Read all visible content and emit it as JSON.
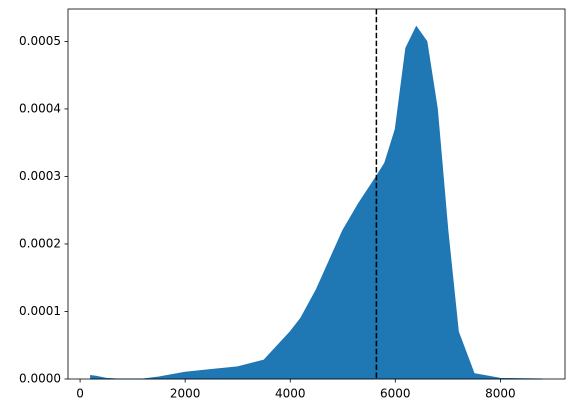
{
  "chart_data": {
    "type": "area",
    "x": [
      200,
      300,
      500,
      700,
      1200,
      1500,
      2000,
      2500,
      3000,
      3500,
      4000,
      4200,
      4500,
      5000,
      5300,
      5640,
      5800,
      6000,
      6200,
      6400,
      6600,
      6800,
      7000,
      7200,
      7500,
      8000,
      8800
    ],
    "series": [
      {
        "color": "#1f77b4",
        "values": [
          5e-06,
          4e-06,
          1e-06,
          0,
          0,
          3e-06,
          1e-05,
          1.4e-05,
          1.8e-05,
          2.8e-05,
          7e-05,
          9e-05,
          0.000133,
          0.00022,
          0.00026,
          0.0003,
          0.00032,
          0.00037,
          0.00049,
          0.000522,
          0.0005,
          0.0004,
          0.00022,
          7e-05,
          8e-06,
          1e-06,
          0
        ]
      }
    ],
    "vline": 5640,
    "xlim": [
      -230,
      9230
    ],
    "ylim": [
      0,
      0.000548
    ],
    "xticks": [
      0,
      2000,
      4000,
      6000,
      8000
    ],
    "yticks": [
      {
        "value": 0,
        "label": "0.0000"
      },
      {
        "value": 0.0001,
        "label": "0.0001"
      },
      {
        "value": 0.0002,
        "label": "0.0002"
      },
      {
        "value": 0.0003,
        "label": "0.0003"
      },
      {
        "value": 0.0004,
        "label": "0.0004"
      },
      {
        "value": 0.0005,
        "label": "0.0005"
      }
    ]
  }
}
